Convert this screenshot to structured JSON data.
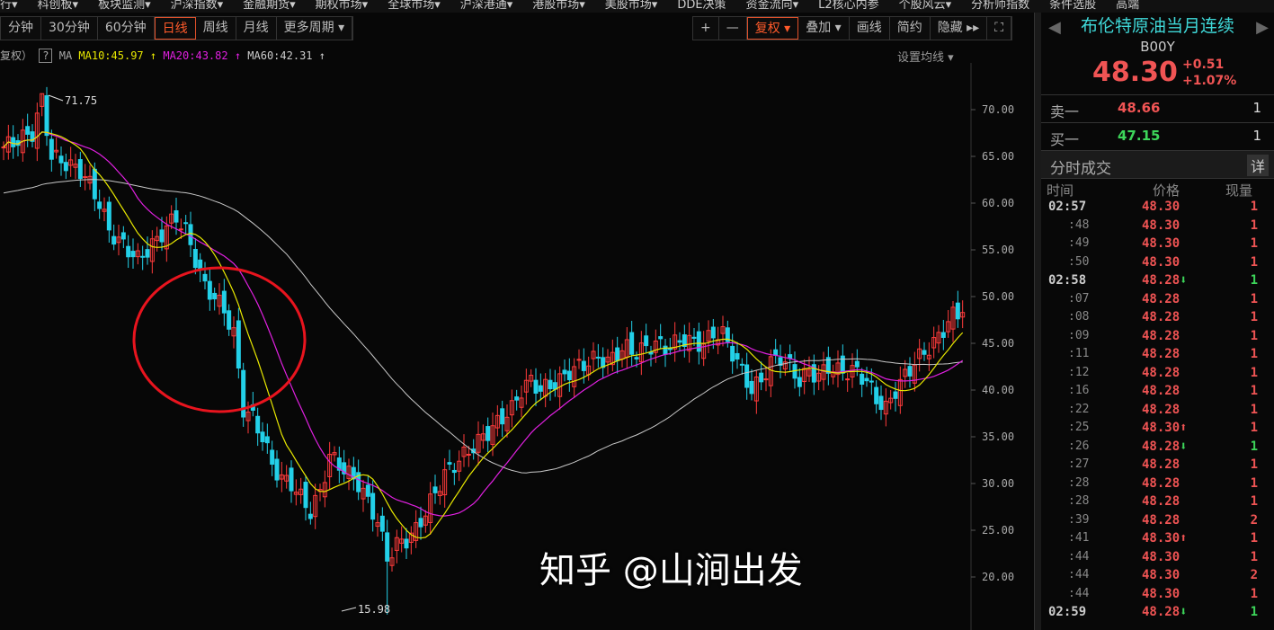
{
  "top_menu": [
    "行▾",
    "科创板▾",
    "板块监测▾",
    "沪深指数▾",
    "金融期货▾",
    "期权市场▾",
    "全球市场▾",
    "沪深港通▾",
    "港股市场▾",
    "美股市场▾",
    "DDE决策",
    "资金流向▾",
    "L2核心内参",
    "个股风云▾",
    "分析师指数",
    "条件选股",
    "高端"
  ],
  "period_tabs": [
    "分钟",
    "30分钟",
    "60分钟",
    "日线",
    "周线",
    "月线",
    "更多周期 ▾"
  ],
  "active_period": "日线",
  "tools": [
    "+",
    "—",
    "复权 ▾",
    "叠加 ▾",
    "画线",
    "简约",
    "隐藏 ▸▸",
    "⛶"
  ],
  "ma_bar": {
    "prefix": "复权）",
    "help": "?",
    "ma": "MA",
    "ma10": "MA10:45.97 ↑",
    "ma20": "MA20:43.82 ↑",
    "ma60": "MA60:42.31 ↑",
    "set_ma": "设置均线 ▾"
  },
  "colors": {
    "up": "#ff3b3b",
    "down": "#23d0e8",
    "ma10": "#e8e800",
    "ma20": "#e020e0",
    "ma60": "#c8c8c8",
    "circle": "#e8141e"
  },
  "chart_data": {
    "type": "candlestick",
    "y_ticks": [
      "70.00",
      "65.00",
      "60.00",
      "55.00",
      "50.00",
      "45.00",
      "40.00",
      "35.00",
      "30.00",
      "25.00",
      "20.00"
    ],
    "ylim": [
      15,
      72
    ],
    "high_label": "71.75",
    "low_label": "15.98",
    "closes": [
      66,
      66.5,
      67,
      67.5,
      71,
      65,
      64.5,
      64,
      63.5,
      62,
      60,
      57,
      56,
      55,
      54,
      55,
      56,
      57.5,
      58.5,
      57,
      54,
      51,
      50,
      48.5,
      46,
      38,
      37,
      35,
      32,
      30.5,
      30,
      28.5,
      27,
      29,
      33,
      32,
      31,
      30,
      28,
      26,
      22,
      23.5,
      24,
      25,
      27,
      29,
      31,
      32,
      33,
      34,
      35,
      36,
      37,
      38,
      40,
      41,
      40,
      40.5,
      41,
      42,
      42.5,
      43,
      43.5,
      43,
      44,
      44.5,
      44,
      44.5,
      45,
      44.5,
      45,
      45.5,
      45,
      45,
      46,
      46,
      44,
      42,
      40,
      41,
      43,
      43.5,
      42.5,
      41,
      42,
      41.5,
      42.5,
      42,
      42,
      42,
      41,
      39,
      38,
      40,
      41.5,
      43,
      44,
      45,
      46.5,
      48,
      48.3
    ]
  },
  "quote": {
    "name": "布伦特原油当月连续",
    "code": "B00Y",
    "price": "48.30",
    "change": "+0.51",
    "pct": "+1.07%",
    "sell1_label": "卖一",
    "sell1_price": "48.66",
    "sell1_vol": "1",
    "buy1_label": "买一",
    "buy1_price": "47.15",
    "buy1_vol": "1",
    "ticks_title": "分时成交",
    "detail_btn": "详",
    "col_time": "时间",
    "col_price": "价格",
    "col_vol": "现量"
  },
  "trades": [
    {
      "t": "02:57",
      "p": "48.30",
      "v": "1",
      "d": ""
    },
    {
      "t": ":48",
      "p": "48.30",
      "v": "1",
      "d": ""
    },
    {
      "t": ":49",
      "p": "48.30",
      "v": "1",
      "d": ""
    },
    {
      "t": ":50",
      "p": "48.30",
      "v": "1",
      "d": ""
    },
    {
      "t": "02:58",
      "p": "48.28",
      "v": "1",
      "d": "down"
    },
    {
      "t": ":07",
      "p": "48.28",
      "v": "1",
      "d": ""
    },
    {
      "t": ":08",
      "p": "48.28",
      "v": "1",
      "d": ""
    },
    {
      "t": ":09",
      "p": "48.28",
      "v": "1",
      "d": ""
    },
    {
      "t": ":11",
      "p": "48.28",
      "v": "1",
      "d": ""
    },
    {
      "t": ":12",
      "p": "48.28",
      "v": "1",
      "d": ""
    },
    {
      "t": ":16",
      "p": "48.28",
      "v": "1",
      "d": ""
    },
    {
      "t": ":22",
      "p": "48.28",
      "v": "1",
      "d": ""
    },
    {
      "t": ":25",
      "p": "48.30",
      "v": "1",
      "d": "up"
    },
    {
      "t": ":26",
      "p": "48.28",
      "v": "1",
      "d": "down"
    },
    {
      "t": ":27",
      "p": "48.28",
      "v": "1",
      "d": ""
    },
    {
      "t": ":28",
      "p": "48.28",
      "v": "1",
      "d": ""
    },
    {
      "t": ":28",
      "p": "48.28",
      "v": "1",
      "d": ""
    },
    {
      "t": ":39",
      "p": "48.28",
      "v": "2",
      "d": ""
    },
    {
      "t": ":41",
      "p": "48.30",
      "v": "1",
      "d": "up"
    },
    {
      "t": ":44",
      "p": "48.30",
      "v": "1",
      "d": ""
    },
    {
      "t": ":44",
      "p": "48.30",
      "v": "2",
      "d": ""
    },
    {
      "t": ":44",
      "p": "48.30",
      "v": "1",
      "d": ""
    },
    {
      "t": "02:59",
      "p": "48.28",
      "v": "1",
      "d": "down"
    }
  ],
  "watermark": "知乎 @山涧出发"
}
